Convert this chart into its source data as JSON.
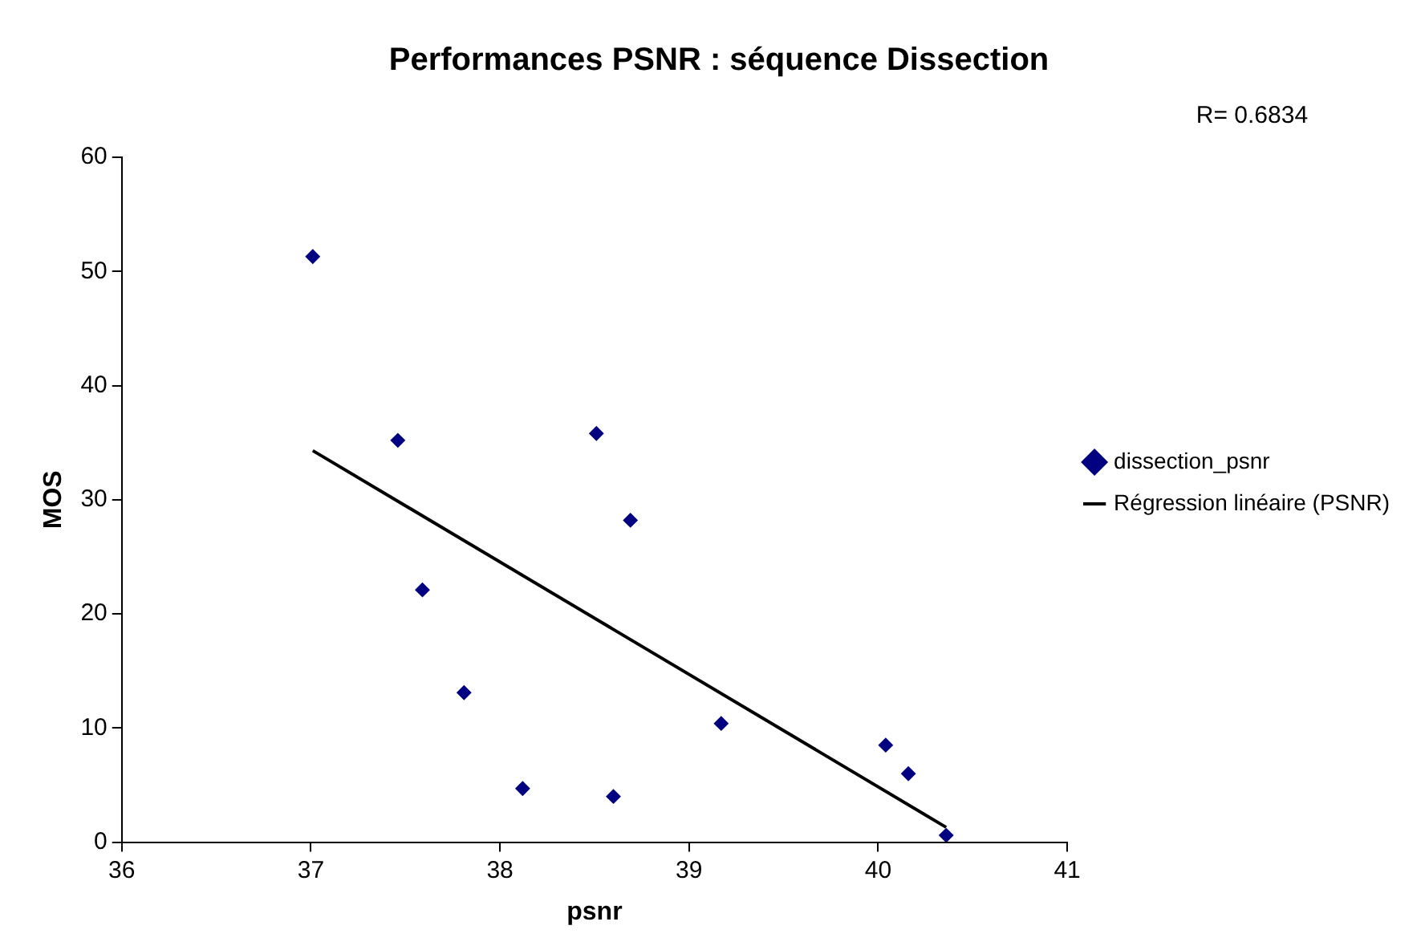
{
  "chart_data": {
    "type": "scatter",
    "title": "Performances PSNR : séquence Dissection",
    "xlabel": "psnr",
    "ylabel": "MOS",
    "annotations": [
      "R= 0.6834"
    ],
    "xlim": [
      36,
      41
    ],
    "xticks": [
      36,
      37,
      38,
      39,
      40,
      41
    ],
    "ylim": [
      0,
      60
    ],
    "yticks": [
      0,
      10,
      20,
      30,
      40,
      50,
      60
    ],
    "grid": false,
    "legend": "right",
    "marker": "diamond",
    "series": [
      {
        "name": "dissection_psnr",
        "color": "#000080",
        "x": [
          37.01,
          37.46,
          37.59,
          37.81,
          38.12,
          38.51,
          38.6,
          38.69,
          39.17,
          40.04,
          40.16,
          40.36
        ],
        "values": [
          51.3,
          35.2,
          22.1,
          13.1,
          4.7,
          35.8,
          4.0,
          28.2,
          10.4,
          8.5,
          6.0,
          0.6
        ]
      },
      {
        "name": "Régression linéaire (PSNR)",
        "type": "line",
        "color": "#000000",
        "line_style": "solid",
        "marker": "none",
        "x": [
          37.01,
          40.36
        ],
        "values": [
          34.3,
          1.3
        ]
      }
    ]
  }
}
